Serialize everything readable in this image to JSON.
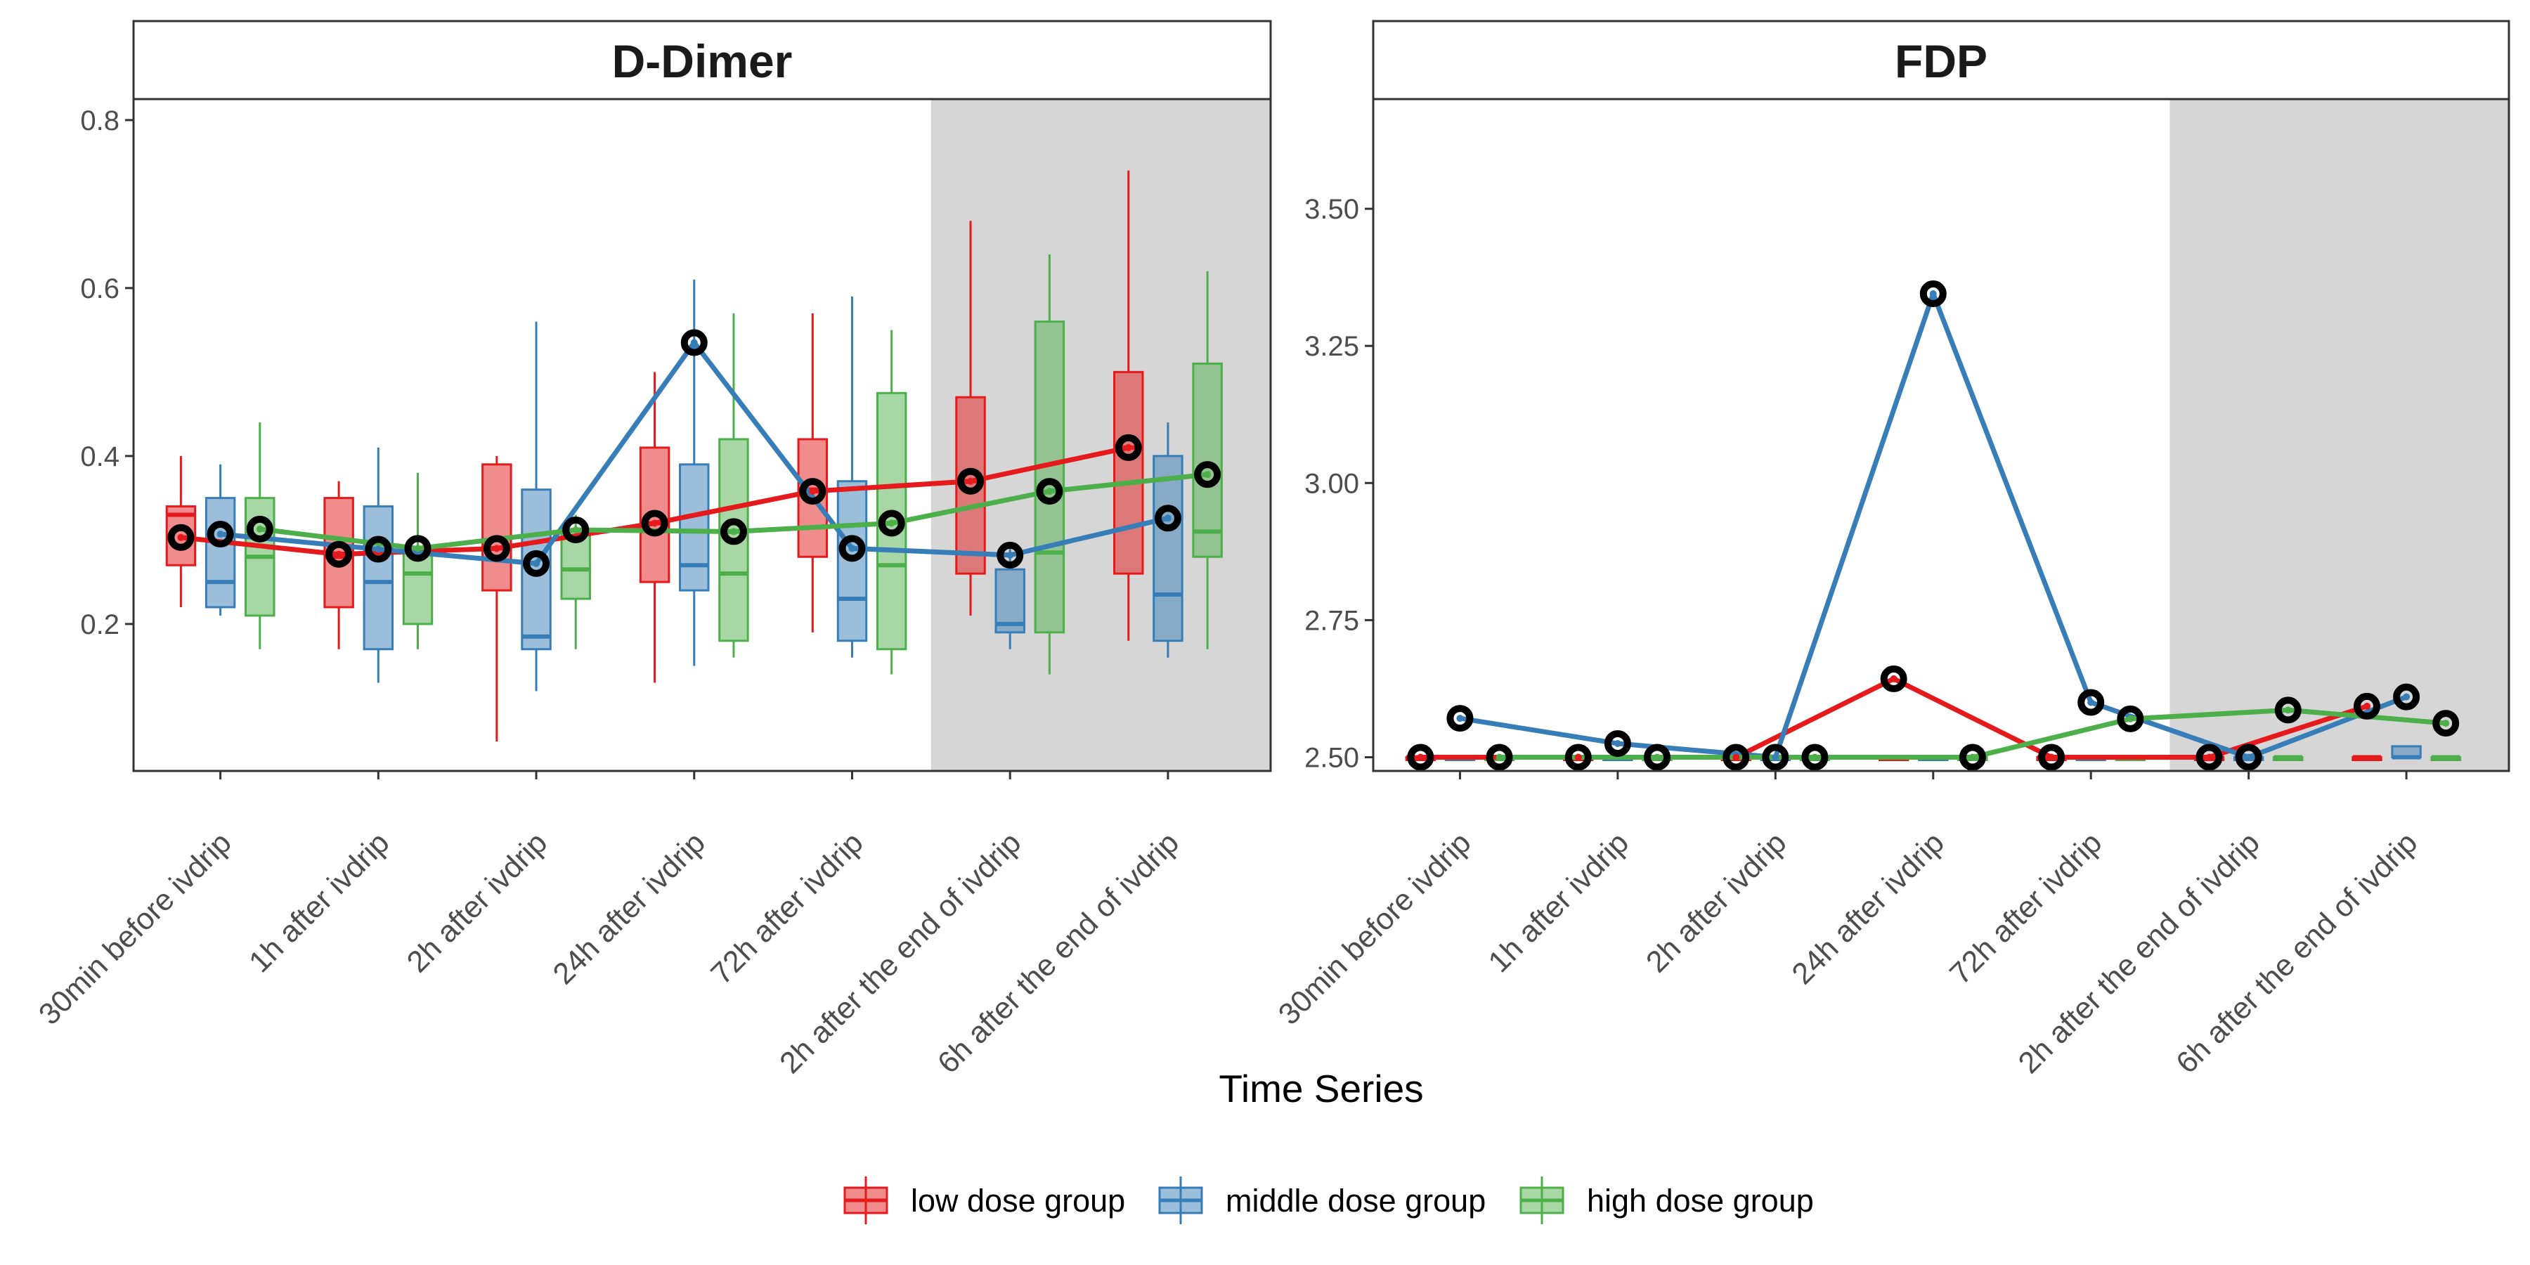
{
  "xlabel": "Time Series",
  "time_points": [
    "30min before ivdrip",
    "1h after ivdrip",
    "2h after ivdrip",
    "24h after ivdrip",
    "72h after ivdrip",
    "2h after the end of ivdrip",
    "6h after the end of ivdrip"
  ],
  "groups": [
    {
      "name": "low dose group",
      "color": "#E41A1C"
    },
    {
      "name": "middle dose group",
      "color": "#377EB8"
    },
    {
      "name": "high dose group",
      "color": "#4DAF4A"
    }
  ],
  "shaded_region_color": "#D6D6D6",
  "chart_data": [
    {
      "type": "box",
      "panel_title": "D-Dimer",
      "ylim": [
        0.025,
        0.825
      ],
      "yticks": [
        0.2,
        0.4,
        0.6,
        0.8
      ],
      "ytick_labels": [
        "0.2",
        "0.4",
        "0.6",
        "0.8"
      ],
      "shaded_from_category": 5,
      "grid": false,
      "series": [
        {
          "name": "low dose group",
          "box": [
            {
              "min": 0.22,
              "q1": 0.27,
              "median": 0.33,
              "q3": 0.34,
              "max": 0.4
            },
            {
              "min": 0.17,
              "q1": 0.22,
              "median": 0.28,
              "q3": 0.35,
              "max": 0.37
            },
            {
              "min": 0.06,
              "q1": 0.24,
              "median": 0.29,
              "q3": 0.39,
              "max": 0.4
            },
            {
              "min": 0.13,
              "q1": 0.25,
              "median": 0.32,
              "q3": 0.41,
              "max": 0.5
            },
            {
              "min": 0.19,
              "q1": 0.28,
              "median": 0.36,
              "q3": 0.42,
              "max": 0.57
            },
            {
              "min": 0.21,
              "q1": 0.26,
              "median": 0.37,
              "q3": 0.47,
              "max": 0.68
            },
            {
              "min": 0.18,
              "q1": 0.26,
              "median": 0.41,
              "q3": 0.5,
              "max": 0.74
            }
          ],
          "mean": [
            0.303,
            0.283,
            0.29,
            0.32,
            0.358,
            0.37,
            0.41
          ]
        },
        {
          "name": "middle dose group",
          "box": [
            {
              "min": 0.21,
              "q1": 0.22,
              "median": 0.25,
              "q3": 0.35,
              "max": 0.39
            },
            {
              "min": 0.13,
              "q1": 0.17,
              "median": 0.25,
              "q3": 0.34,
              "max": 0.41
            },
            {
              "min": 0.12,
              "q1": 0.17,
              "median": 0.185,
              "q3": 0.36,
              "max": 0.56
            },
            {
              "min": 0.15,
              "q1": 0.24,
              "median": 0.27,
              "q3": 0.39,
              "max": 0.61
            },
            {
              "min": 0.16,
              "q1": 0.18,
              "median": 0.23,
              "q3": 0.37,
              "max": 0.59
            },
            {
              "min": 0.17,
              "q1": 0.19,
              "median": 0.2,
              "q3": 0.265,
              "max": 0.29
            },
            {
              "min": 0.16,
              "q1": 0.18,
              "median": 0.235,
              "q3": 0.4,
              "max": 0.44
            }
          ],
          "mean": [
            0.307,
            0.289,
            0.272,
            0.535,
            0.29,
            0.282,
            0.326
          ]
        },
        {
          "name": "high dose group",
          "box": [
            {
              "min": 0.17,
              "q1": 0.21,
              "median": 0.28,
              "q3": 0.35,
              "max": 0.44
            },
            {
              "min": 0.17,
              "q1": 0.2,
              "median": 0.26,
              "q3": 0.29,
              "max": 0.38
            },
            {
              "min": 0.17,
              "q1": 0.23,
              "median": 0.265,
              "q3": 0.31,
              "max": 0.33
            },
            {
              "min": 0.16,
              "q1": 0.18,
              "median": 0.26,
              "q3": 0.42,
              "max": 0.57
            },
            {
              "min": 0.14,
              "q1": 0.17,
              "median": 0.27,
              "q3": 0.475,
              "max": 0.55
            },
            {
              "min": 0.14,
              "q1": 0.19,
              "median": 0.285,
              "q3": 0.56,
              "max": 0.64
            },
            {
              "min": 0.17,
              "q1": 0.28,
              "median": 0.31,
              "q3": 0.51,
              "max": 0.62
            }
          ],
          "mean": [
            0.313,
            0.29,
            0.312,
            0.31,
            0.32,
            0.358,
            0.378
          ]
        }
      ]
    },
    {
      "type": "box",
      "panel_title": "FDP",
      "ylim": [
        2.475,
        3.7
      ],
      "yticks": [
        2.5,
        2.75,
        3.0,
        3.25,
        3.5
      ],
      "ytick_labels": [
        "2.50",
        "2.75",
        "3.00",
        "3.25",
        "3.50"
      ],
      "shaded_from_category": 5,
      "grid": false,
      "series": [
        {
          "name": "low dose group",
          "box": [
            {
              "min": 2.5,
              "q1": 2.5,
              "median": 2.5,
              "q3": 2.5,
              "max": 2.5
            },
            {
              "min": 2.5,
              "q1": 2.5,
              "median": 2.5,
              "q3": 2.5,
              "max": 2.5
            },
            {
              "min": 2.5,
              "q1": 2.5,
              "median": 2.5,
              "q3": 2.5,
              "max": 2.5
            },
            {
              "min": 2.5,
              "q1": 2.5,
              "median": 2.5,
              "q3": 2.5,
              "max": 2.5
            },
            {
              "min": 2.5,
              "q1": 2.5,
              "median": 2.5,
              "q3": 2.5,
              "max": 2.5
            },
            {
              "min": 2.5,
              "q1": 2.5,
              "median": 2.5,
              "q3": 2.5,
              "max": 2.5
            },
            {
              "min": 2.5,
              "q1": 2.5,
              "median": 2.5,
              "q3": 2.5,
              "max": 2.5
            }
          ],
          "mean": [
            2.5,
            2.5,
            2.5,
            2.643,
            2.5,
            2.5,
            2.593
          ]
        },
        {
          "name": "middle dose group",
          "box": [
            {
              "min": 2.5,
              "q1": 2.5,
              "median": 2.5,
              "q3": 2.5,
              "max": 2.5
            },
            {
              "min": 2.5,
              "q1": 2.5,
              "median": 2.5,
              "q3": 2.5,
              "max": 2.5
            },
            {
              "min": 2.5,
              "q1": 2.5,
              "median": 2.5,
              "q3": 2.5,
              "max": 2.5
            },
            {
              "min": 2.5,
              "q1": 2.5,
              "median": 2.5,
              "q3": 2.5,
              "max": 2.5
            },
            {
              "min": 2.5,
              "q1": 2.5,
              "median": 2.5,
              "q3": 2.5,
              "max": 2.5
            },
            {
              "min": 2.5,
              "q1": 2.5,
              "median": 2.5,
              "q3": 2.5,
              "max": 2.5
            },
            {
              "min": 2.5,
              "q1": 2.5,
              "median": 2.5,
              "q3": 2.52,
              "max": 2.52
            }
          ],
          "mean": [
            2.571,
            2.525,
            2.5,
            3.345,
            2.6,
            2.5,
            2.61
          ]
        },
        {
          "name": "high dose group",
          "box": [
            {
              "min": 2.5,
              "q1": 2.5,
              "median": 2.5,
              "q3": 2.5,
              "max": 2.5
            },
            {
              "min": 2.5,
              "q1": 2.5,
              "median": 2.5,
              "q3": 2.5,
              "max": 2.5
            },
            {
              "min": 2.5,
              "q1": 2.5,
              "median": 2.5,
              "q3": 2.5,
              "max": 2.5
            },
            {
              "min": 2.5,
              "q1": 2.5,
              "median": 2.5,
              "q3": 2.5,
              "max": 2.5
            },
            {
              "min": 2.5,
              "q1": 2.5,
              "median": 2.5,
              "q3": 2.5,
              "max": 2.5
            },
            {
              "min": 2.5,
              "q1": 2.5,
              "median": 2.5,
              "q3": 2.5,
              "max": 2.5
            },
            {
              "min": 2.5,
              "q1": 2.5,
              "median": 2.5,
              "q3": 2.5,
              "max": 2.5
            }
          ],
          "mean": [
            2.5,
            2.5,
            2.5,
            2.5,
            2.57,
            2.586,
            2.562
          ]
        }
      ]
    }
  ]
}
